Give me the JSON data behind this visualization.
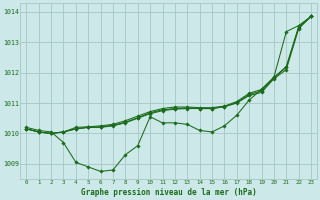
{
  "title": "Graphe pression niveau de la mer (hPa)",
  "bg_color": "#cce8e8",
  "grid_color": "#aacaca",
  "line_color": "#1a6b1a",
  "marker_color": "#1a6b1a",
  "xlim": [
    -0.5,
    23.5
  ],
  "ylim": [
    1008.5,
    1014.3
  ],
  "yticks": [
    1009,
    1010,
    1011,
    1012,
    1013,
    1014
  ],
  "xticks": [
    0,
    1,
    2,
    3,
    4,
    5,
    6,
    7,
    8,
    9,
    10,
    11,
    12,
    13,
    14,
    15,
    16,
    17,
    18,
    19,
    20,
    21,
    22,
    23
  ],
  "series": [
    [
      1010.2,
      1010.1,
      1010.05,
      1009.7,
      1009.05,
      1008.9,
      1008.75,
      1008.8,
      1009.3,
      1009.6,
      1010.55,
      1010.35,
      1010.35,
      1010.3,
      1010.1,
      1010.05,
      1010.25,
      1010.6,
      1011.1,
      1011.45,
      1011.85,
      1013.35,
      1013.55,
      1013.85
    ],
    [
      1010.15,
      1010.05,
      1010.0,
      1010.05,
      1010.15,
      1010.2,
      1010.2,
      1010.25,
      1010.35,
      1010.5,
      1010.65,
      1010.75,
      1010.8,
      1010.82,
      1010.82,
      1010.82,
      1010.88,
      1011.0,
      1011.25,
      1011.35,
      1011.8,
      1012.1,
      1013.45,
      1013.85
    ],
    [
      1010.15,
      1010.05,
      1010.0,
      1010.05,
      1010.15,
      1010.2,
      1010.22,
      1010.27,
      1010.37,
      1010.52,
      1010.68,
      1010.78,
      1010.82,
      1010.84,
      1010.82,
      1010.82,
      1010.88,
      1011.02,
      1011.28,
      1011.4,
      1011.82,
      1012.18,
      1013.48,
      1013.85
    ],
    [
      1010.15,
      1010.05,
      1010.0,
      1010.05,
      1010.2,
      1010.22,
      1010.25,
      1010.3,
      1010.42,
      1010.57,
      1010.72,
      1010.82,
      1010.87,
      1010.87,
      1010.85,
      1010.85,
      1010.9,
      1011.05,
      1011.32,
      1011.45,
      1011.85,
      1012.2,
      1013.52,
      1013.85
    ]
  ]
}
